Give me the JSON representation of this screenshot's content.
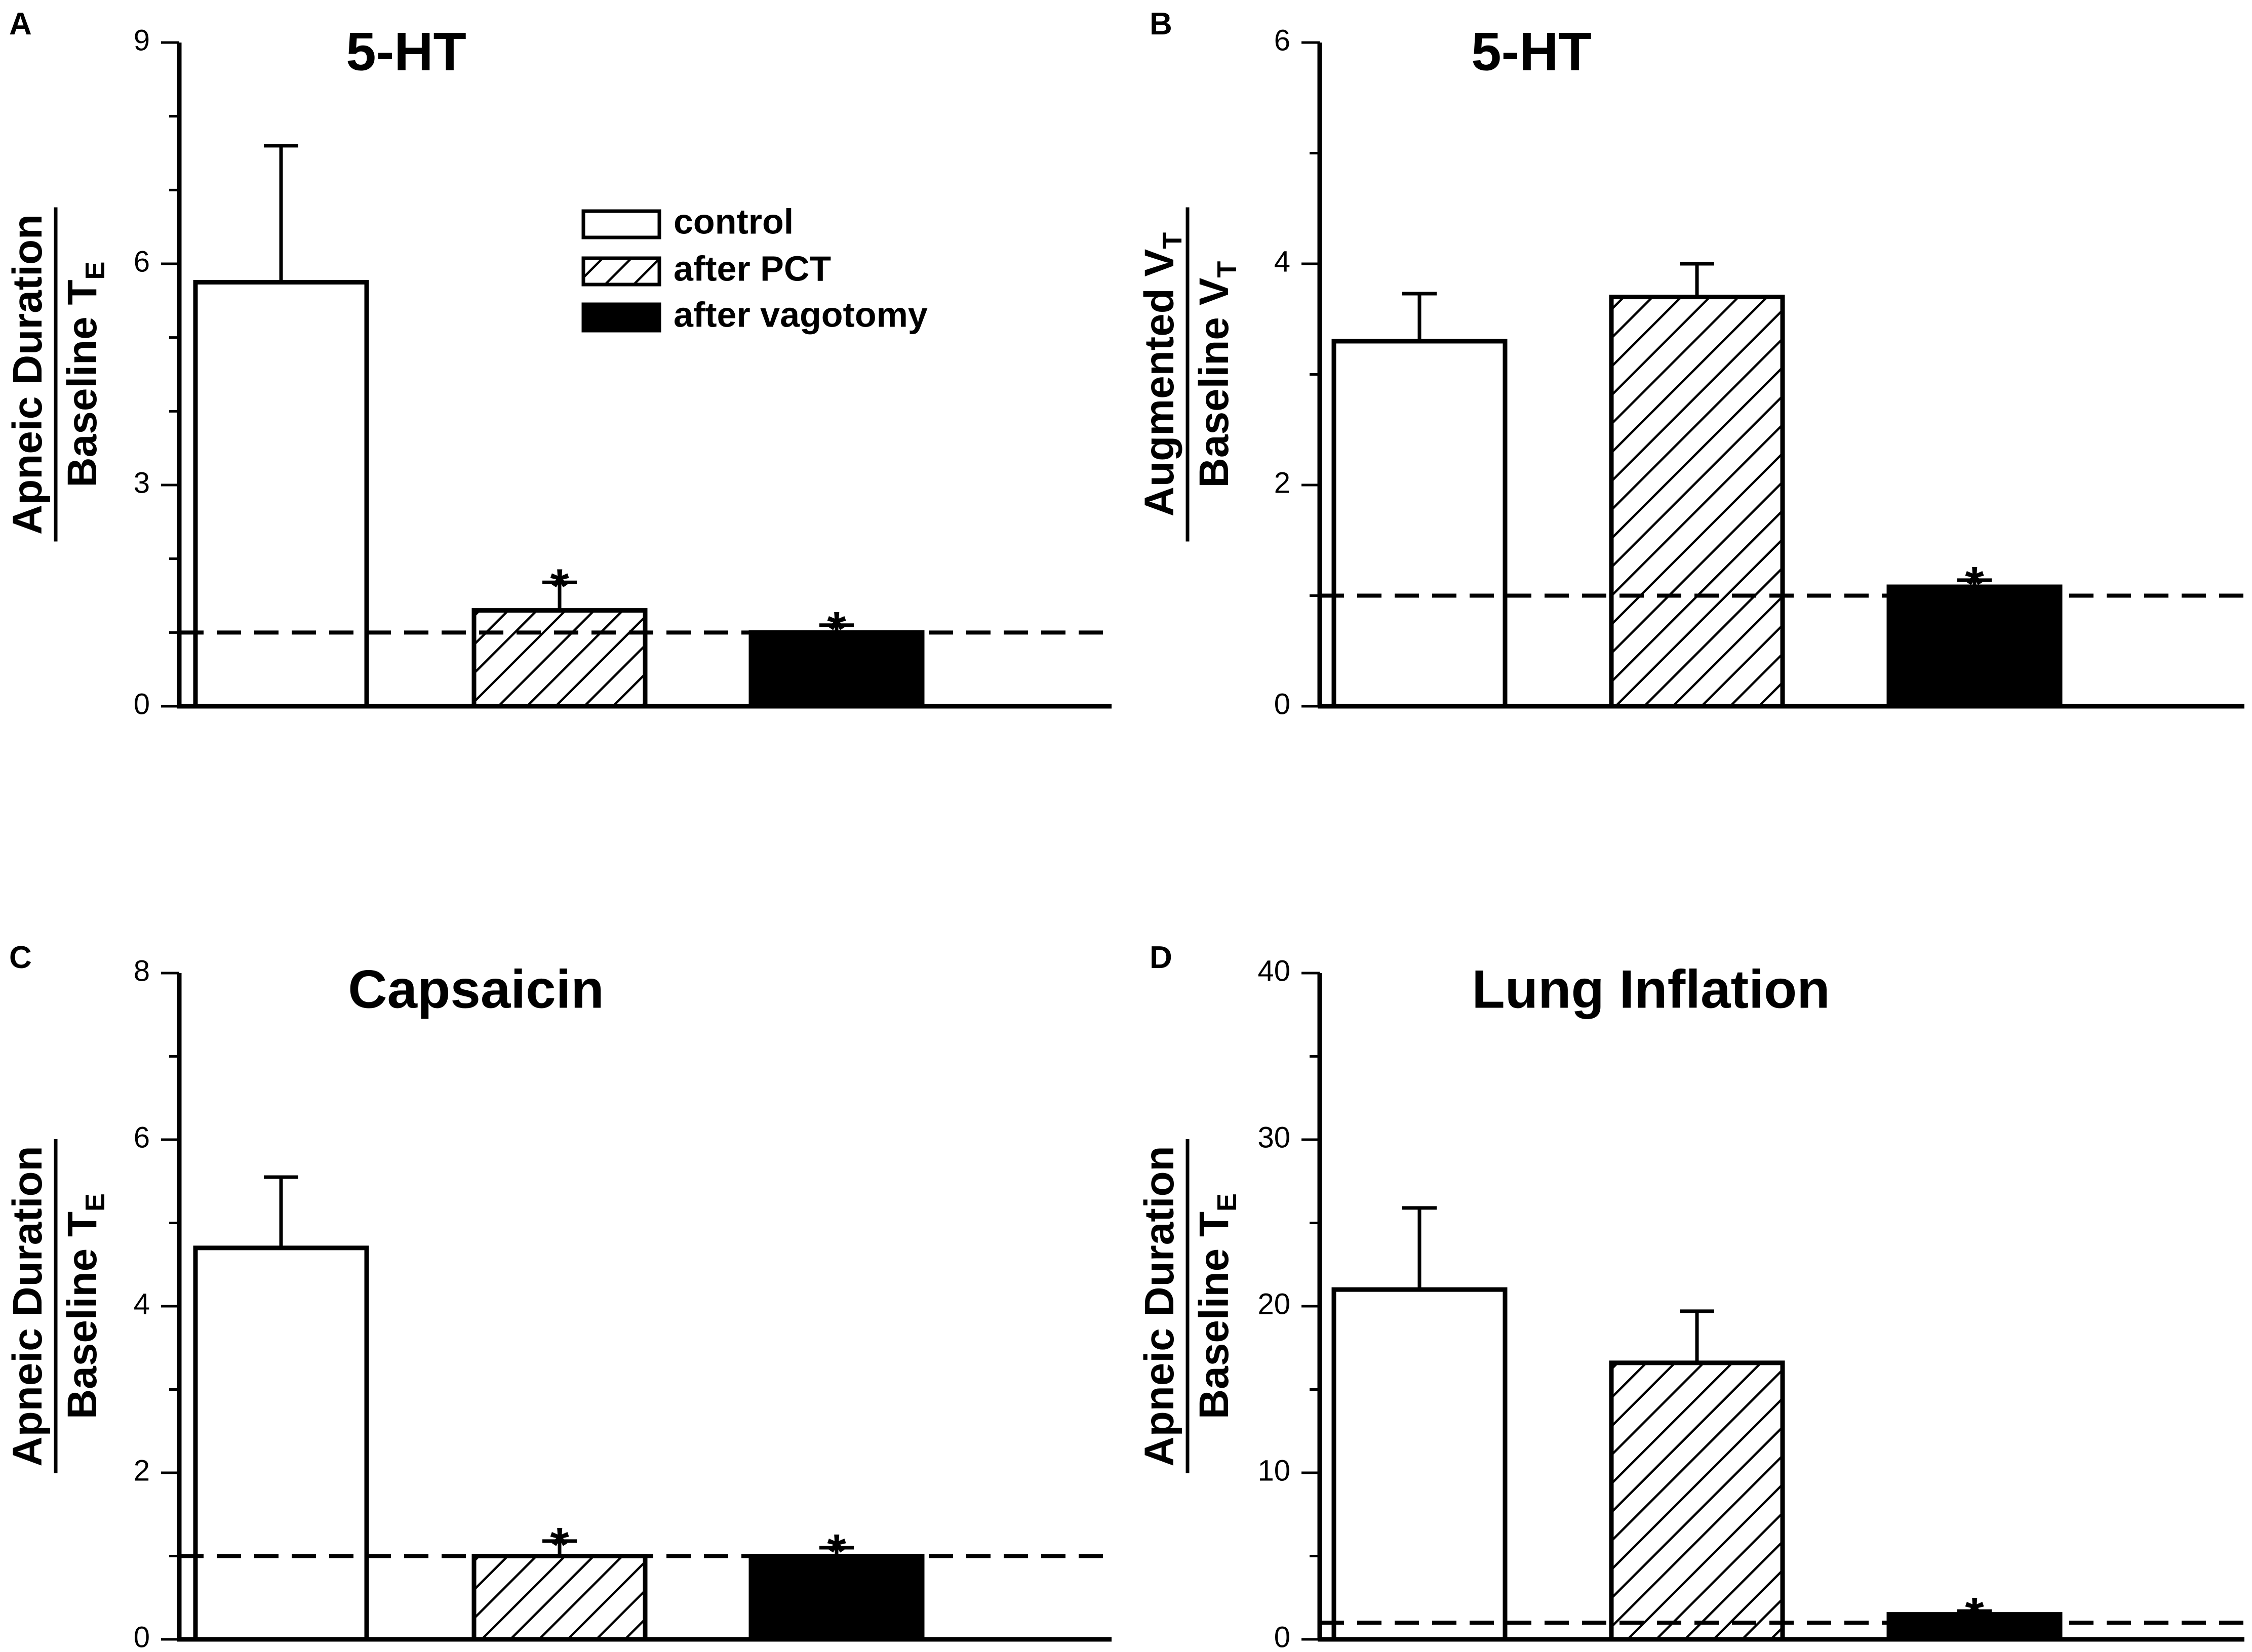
{
  "colors": {
    "ink": "#000000",
    "paper": "#ffffff"
  },
  "legend": [
    {
      "label": "control",
      "style": "open"
    },
    {
      "label": "after PCT",
      "style": "hatched"
    },
    {
      "label": "after vagotomy",
      "style": "filled"
    }
  ],
  "chart_data": [
    {
      "panel": "A",
      "type": "bar",
      "title": "5-HT",
      "ylabel_top": "Apneic Duration",
      "ylabel_bottom": "Baseline T",
      "ylabel_bottom_sub": "E",
      "ylim": [
        0,
        9
      ],
      "ticks": [
        0,
        3,
        6,
        9
      ],
      "minor_step": 1,
      "baseline": 1,
      "categories": [
        "control",
        "after PCT",
        "after vagotomy"
      ],
      "values": [
        5.75,
        1.3,
        1.0
      ],
      "errors": [
        1.85,
        0.38,
        0.1
      ],
      "significant": [
        false,
        true,
        true
      ],
      "star": "*"
    },
    {
      "panel": "B",
      "type": "bar",
      "title": "5-HT",
      "ylabel_top": "Augmented V",
      "ylabel_top_sub": "T",
      "ylabel_bottom": "Baseline V",
      "ylabel_bottom_sub": "T",
      "ylim": [
        0,
        6
      ],
      "ticks": [
        0,
        2,
        4,
        6
      ],
      "minor_step": 1,
      "baseline": 1,
      "categories": [
        "control",
        "after PCT",
        "after vagotomy"
      ],
      "values": [
        3.3,
        3.7,
        1.08
      ],
      "errors": [
        0.43,
        0.3,
        0.06
      ],
      "significant": [
        false,
        false,
        true
      ],
      "star": "*"
    },
    {
      "panel": "C",
      "type": "bar",
      "title": "Capsaicin",
      "ylabel_top": "Apneic Duration",
      "ylabel_bottom": "Baseline T",
      "ylabel_bottom_sub": "E",
      "ylim": [
        0,
        8
      ],
      "ticks": [
        0,
        2,
        4,
        6,
        8
      ],
      "minor_step": 1,
      "baseline": 1,
      "categories": [
        "control",
        "after PCT",
        "after vagotomy"
      ],
      "values": [
        4.7,
        1.0,
        1.0
      ],
      "errors": [
        0.85,
        0.18,
        0.1
      ],
      "significant": [
        false,
        true,
        true
      ],
      "star": "*"
    },
    {
      "panel": "D",
      "type": "bar",
      "title": "Lung Inflation",
      "ylabel_top": "Apneic Duration",
      "ylabel_bottom": "Baseline T",
      "ylabel_bottom_sub": "E",
      "ylim": [
        0,
        40
      ],
      "ticks": [
        0,
        10,
        20,
        30,
        40
      ],
      "minor_step": 5,
      "baseline": 1,
      "categories": [
        "control",
        "after PCT",
        "after vagotomy"
      ],
      "values": [
        21.0,
        16.6,
        1.5
      ],
      "errors": [
        4.9,
        3.1,
        0.2
      ],
      "significant": [
        false,
        false,
        true
      ],
      "star": "*"
    }
  ]
}
